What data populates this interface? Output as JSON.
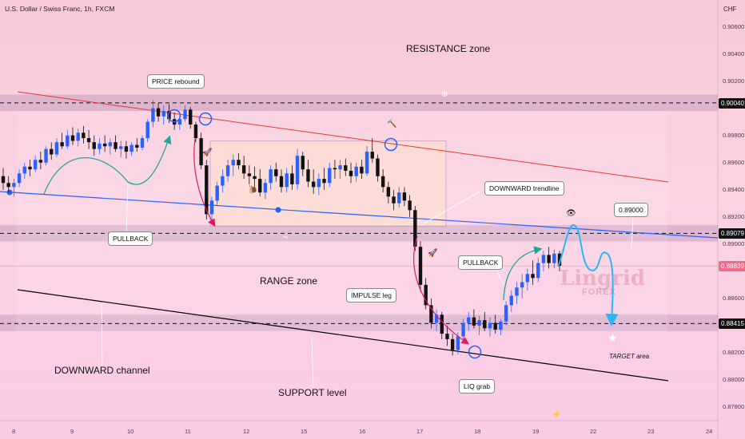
{
  "header": {
    "symbol_title": "U.S. Dollar / Swiss Franc, 1h, FXCM",
    "currency": "CHF"
  },
  "watermark": {
    "name": "Lingrid",
    "sub": "FOREX"
  },
  "chart_data": {
    "type": "candlestick",
    "price_axis": {
      "ylim": [
        0.877,
        0.9075
      ],
      "ticks": [
        "0.90600",
        "0.90400",
        "0.90200",
        "0.89800",
        "0.89600",
        "0.89400",
        "0.89200",
        "0.89000",
        "0.88600",
        "0.88200",
        "0.88000",
        "0.87800"
      ]
    },
    "time_axis": {
      "ticks": [
        "8",
        "9",
        "10",
        "11",
        "12",
        "15",
        "16",
        "17",
        "18",
        "19",
        "22",
        "23",
        "24"
      ]
    },
    "price_labels": [
      {
        "value": "0.90040",
        "price": 0.9004,
        "style": "dark"
      },
      {
        "value": "0.89079",
        "price": 0.89079,
        "style": "dark"
      },
      {
        "value": "0.88839",
        "price": 0.88839,
        "style": "red"
      },
      {
        "value": "0.88415",
        "price": 0.88415,
        "style": "dark"
      }
    ],
    "levels": [
      {
        "name": "resistance-level",
        "price": 0.9004
      },
      {
        "name": "range-low-level",
        "price": 0.89079
      },
      {
        "name": "support-level",
        "price": 0.88415
      }
    ],
    "zones": [
      {
        "name": "resistance-zone-band",
        "from": 0.8998,
        "to": 0.901
      },
      {
        "name": "range-low-band",
        "from": 0.8902,
        "to": 0.8914
      },
      {
        "name": "support-zone-band",
        "from": 0.8836,
        "to": 0.8848
      }
    ],
    "range_box": {
      "from": 0.8913,
      "to": 0.8976
    },
    "target_price": 0.89,
    "candles": [
      [
        0.895,
        0.8956,
        0.894,
        0.8945
      ],
      [
        0.8945,
        0.895,
        0.8938,
        0.8942
      ],
      [
        0.8942,
        0.8948,
        0.8935,
        0.8945
      ],
      [
        0.8945,
        0.8955,
        0.8942,
        0.8952
      ],
      [
        0.8952,
        0.896,
        0.8948,
        0.8957
      ],
      [
        0.8957,
        0.8962,
        0.895,
        0.8955
      ],
      [
        0.8955,
        0.8965,
        0.8953,
        0.8962
      ],
      [
        0.8962,
        0.8968,
        0.8955,
        0.896
      ],
      [
        0.896,
        0.8972,
        0.8958,
        0.897
      ],
      [
        0.897,
        0.8975,
        0.8962,
        0.8966
      ],
      [
        0.8966,
        0.8978,
        0.8964,
        0.8975
      ],
      [
        0.8975,
        0.8982,
        0.897,
        0.8972
      ],
      [
        0.8972,
        0.8984,
        0.897,
        0.898
      ],
      [
        0.898,
        0.8986,
        0.8973,
        0.8976
      ],
      [
        0.8976,
        0.8985,
        0.8972,
        0.8982
      ],
      [
        0.8982,
        0.8987,
        0.8974,
        0.8978
      ],
      [
        0.8978,
        0.8984,
        0.897,
        0.8975
      ],
      [
        0.8975,
        0.898,
        0.8965,
        0.897
      ],
      [
        0.897,
        0.8978,
        0.8966,
        0.8974
      ],
      [
        0.8974,
        0.898,
        0.8968,
        0.8972
      ],
      [
        0.8972,
        0.8978,
        0.8966,
        0.8975
      ],
      [
        0.8975,
        0.898,
        0.8968,
        0.897
      ],
      [
        0.897,
        0.8976,
        0.8964,
        0.8972
      ],
      [
        0.8972,
        0.8976,
        0.8963,
        0.8968
      ],
      [
        0.8968,
        0.8975,
        0.8965,
        0.8973
      ],
      [
        0.8973,
        0.8978,
        0.8968,
        0.8971
      ],
      [
        0.8971,
        0.898,
        0.8969,
        0.8978
      ],
      [
        0.8978,
        0.8992,
        0.8975,
        0.899
      ],
      [
        0.899,
        0.9006,
        0.8986,
        0.9
      ],
      [
        0.9,
        0.9004,
        0.899,
        0.8994
      ],
      [
        0.8994,
        0.9002,
        0.8988,
        0.8998
      ],
      [
        0.8998,
        0.9003,
        0.8989,
        0.8992
      ],
      [
        0.8992,
        0.8997,
        0.8984,
        0.8988
      ],
      [
        0.8988,
        0.8995,
        0.8984,
        0.8992
      ],
      [
        0.8992,
        0.9002,
        0.899,
        0.8999
      ],
      [
        0.8999,
        0.9001,
        0.8985,
        0.8988
      ],
      [
        0.8988,
        0.899,
        0.8975,
        0.8978
      ],
      [
        0.8978,
        0.8982,
        0.8955,
        0.8958
      ],
      [
        0.8958,
        0.8962,
        0.8918,
        0.8922
      ],
      [
        0.8922,
        0.8935,
        0.8918,
        0.8932
      ],
      [
        0.8932,
        0.8946,
        0.8928,
        0.8943
      ],
      [
        0.8943,
        0.8955,
        0.8938,
        0.895
      ],
      [
        0.895,
        0.8962,
        0.8946,
        0.8958
      ],
      [
        0.8958,
        0.8966,
        0.895,
        0.8962
      ],
      [
        0.8962,
        0.8967,
        0.8955,
        0.8958
      ],
      [
        0.8958,
        0.8965,
        0.8948,
        0.8952
      ],
      [
        0.8952,
        0.8958,
        0.8944,
        0.895
      ],
      [
        0.895,
        0.8957,
        0.8942,
        0.8948
      ],
      [
        0.8948,
        0.8955,
        0.8935,
        0.8938
      ],
      [
        0.8938,
        0.8948,
        0.8933,
        0.8945
      ],
      [
        0.8945,
        0.8958,
        0.894,
        0.8955
      ],
      [
        0.8955,
        0.896,
        0.8946,
        0.895
      ],
      [
        0.895,
        0.8955,
        0.8938,
        0.8942
      ],
      [
        0.8942,
        0.8956,
        0.8938,
        0.8952
      ],
      [
        0.8952,
        0.8958,
        0.894,
        0.8944
      ],
      [
        0.8944,
        0.897,
        0.894,
        0.8965
      ],
      [
        0.8965,
        0.8968,
        0.895,
        0.8955
      ],
      [
        0.8955,
        0.8962,
        0.8942,
        0.8946
      ],
      [
        0.8946,
        0.8955,
        0.8937,
        0.8942
      ],
      [
        0.8942,
        0.8952,
        0.8936,
        0.8948
      ],
      [
        0.8948,
        0.8956,
        0.894,
        0.8945
      ],
      [
        0.8945,
        0.896,
        0.8942,
        0.8956
      ],
      [
        0.8956,
        0.8962,
        0.8948,
        0.8955
      ],
      [
        0.8955,
        0.8962,
        0.8948,
        0.8958
      ],
      [
        0.8958,
        0.8963,
        0.895,
        0.8954
      ],
      [
        0.8954,
        0.896,
        0.8945,
        0.895
      ],
      [
        0.895,
        0.896,
        0.8946,
        0.8957
      ],
      [
        0.8957,
        0.8962,
        0.8948,
        0.8952
      ],
      [
        0.8952,
        0.8972,
        0.895,
        0.8968
      ],
      [
        0.8968,
        0.8978,
        0.896,
        0.8963
      ],
      [
        0.8963,
        0.8966,
        0.8946,
        0.895
      ],
      [
        0.895,
        0.8955,
        0.8938,
        0.8942
      ],
      [
        0.8942,
        0.8946,
        0.893,
        0.8935
      ],
      [
        0.8935,
        0.894,
        0.8925,
        0.893
      ],
      [
        0.893,
        0.8942,
        0.8927,
        0.8938
      ],
      [
        0.8938,
        0.8942,
        0.8928,
        0.8932
      ],
      [
        0.8932,
        0.8936,
        0.892,
        0.8925
      ],
      [
        0.8925,
        0.8928,
        0.8895,
        0.8898
      ],
      [
        0.8898,
        0.8902,
        0.8865,
        0.887
      ],
      [
        0.887,
        0.8875,
        0.8852,
        0.8855
      ],
      [
        0.8855,
        0.886,
        0.8838,
        0.8842
      ],
      [
        0.8842,
        0.8852,
        0.8836,
        0.8848
      ],
      [
        0.8848,
        0.885,
        0.883,
        0.8834
      ],
      [
        0.8834,
        0.884,
        0.8825,
        0.883
      ],
      [
        0.883,
        0.8834,
        0.8818,
        0.8822
      ],
      [
        0.8822,
        0.8835,
        0.8819,
        0.8832
      ],
      [
        0.8832,
        0.8845,
        0.8828,
        0.8842
      ],
      [
        0.8842,
        0.885,
        0.8836,
        0.8846
      ],
      [
        0.8846,
        0.8852,
        0.8838,
        0.884
      ],
      [
        0.884,
        0.8847,
        0.8833,
        0.8844
      ],
      [
        0.8844,
        0.885,
        0.8836,
        0.8838
      ],
      [
        0.8838,
        0.8846,
        0.8832,
        0.8842
      ],
      [
        0.8842,
        0.8848,
        0.8834,
        0.8837
      ],
      [
        0.8837,
        0.8845,
        0.8833,
        0.8843
      ],
      [
        0.8843,
        0.8858,
        0.884,
        0.8855
      ],
      [
        0.8855,
        0.8866,
        0.885,
        0.8862
      ],
      [
        0.8862,
        0.8872,
        0.8856,
        0.8868
      ],
      [
        0.8868,
        0.8878,
        0.886,
        0.8872
      ],
      [
        0.8872,
        0.8882,
        0.8866,
        0.8878
      ],
      [
        0.8878,
        0.8888,
        0.887,
        0.8875
      ],
      [
        0.8875,
        0.889,
        0.8872,
        0.8886
      ],
      [
        0.8886,
        0.8895,
        0.888,
        0.8892
      ],
      [
        0.8892,
        0.8898,
        0.8882,
        0.8886
      ],
      [
        0.8886,
        0.8896,
        0.8882,
        0.8893
      ],
      [
        0.8893,
        0.8895,
        0.888,
        0.8884
      ]
    ]
  },
  "labels": {
    "resistance_zone": "RESISTANCE zone",
    "price_rebound": "PRICE rebound",
    "downward_trendline": "DOWNWARD trendline",
    "pullback_left": "PULLBACK",
    "pullback_right": "PULLBACK",
    "range_zone": "RANGE zone",
    "impulse_leg": "IMPULSE leg",
    "downward_channel": "DOWNWARD channel",
    "support_level": "SUPPORT level",
    "liq_grab": "LIQ grab",
    "target_area": "TARGET area",
    "target_value": "0.89000"
  },
  "colors": {
    "bull": "#2962ff",
    "bear": "#111111",
    "resistance_line": "#e53935",
    "trend_line": "#2962ff",
    "channel_line": "#000000",
    "arrow_green": "#26a69a",
    "arrow_pink": "#d81b60",
    "arrow_cyan": "#29b6f6"
  }
}
